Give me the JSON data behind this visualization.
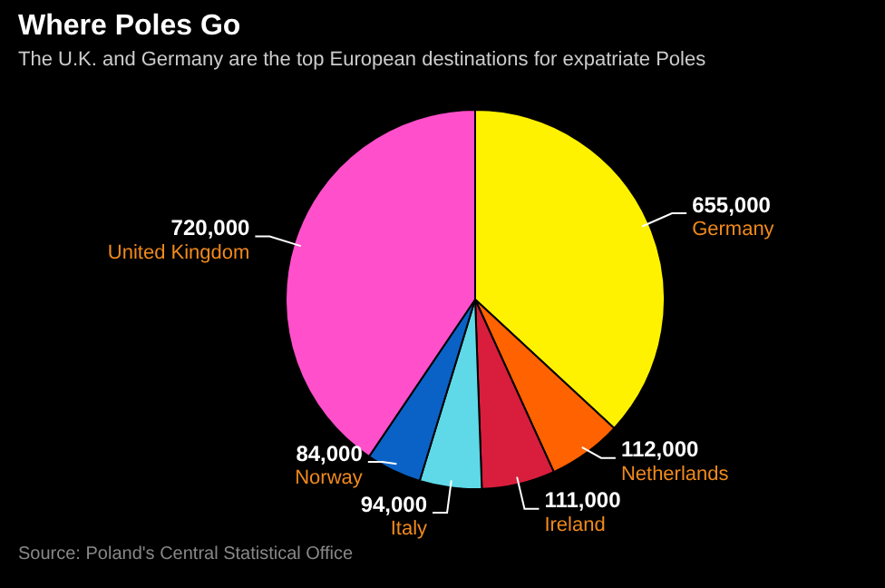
{
  "chart_data": {
    "type": "pie",
    "title": "Where Poles Go",
    "subtitle": "The U.K. and Germany are the top European destinations for expatriate Poles",
    "categories": [
      "Germany",
      "Netherlands",
      "Ireland",
      "Italy",
      "Norway",
      "United Kingdom"
    ],
    "values": [
      655000,
      112000,
      111000,
      94000,
      84000,
      720000
    ],
    "colors": [
      "#fff200",
      "#ff6200",
      "#d81e3c",
      "#5fd9e8",
      "#0a62c6",
      "#ff4fcb"
    ],
    "value_labels": [
      "655,000",
      "112,000",
      "111,000",
      "94,000",
      "84,000",
      "720,000"
    ],
    "legend": false,
    "annotations": [
      "Source: Poland's Central Statistical Office"
    ]
  }
}
